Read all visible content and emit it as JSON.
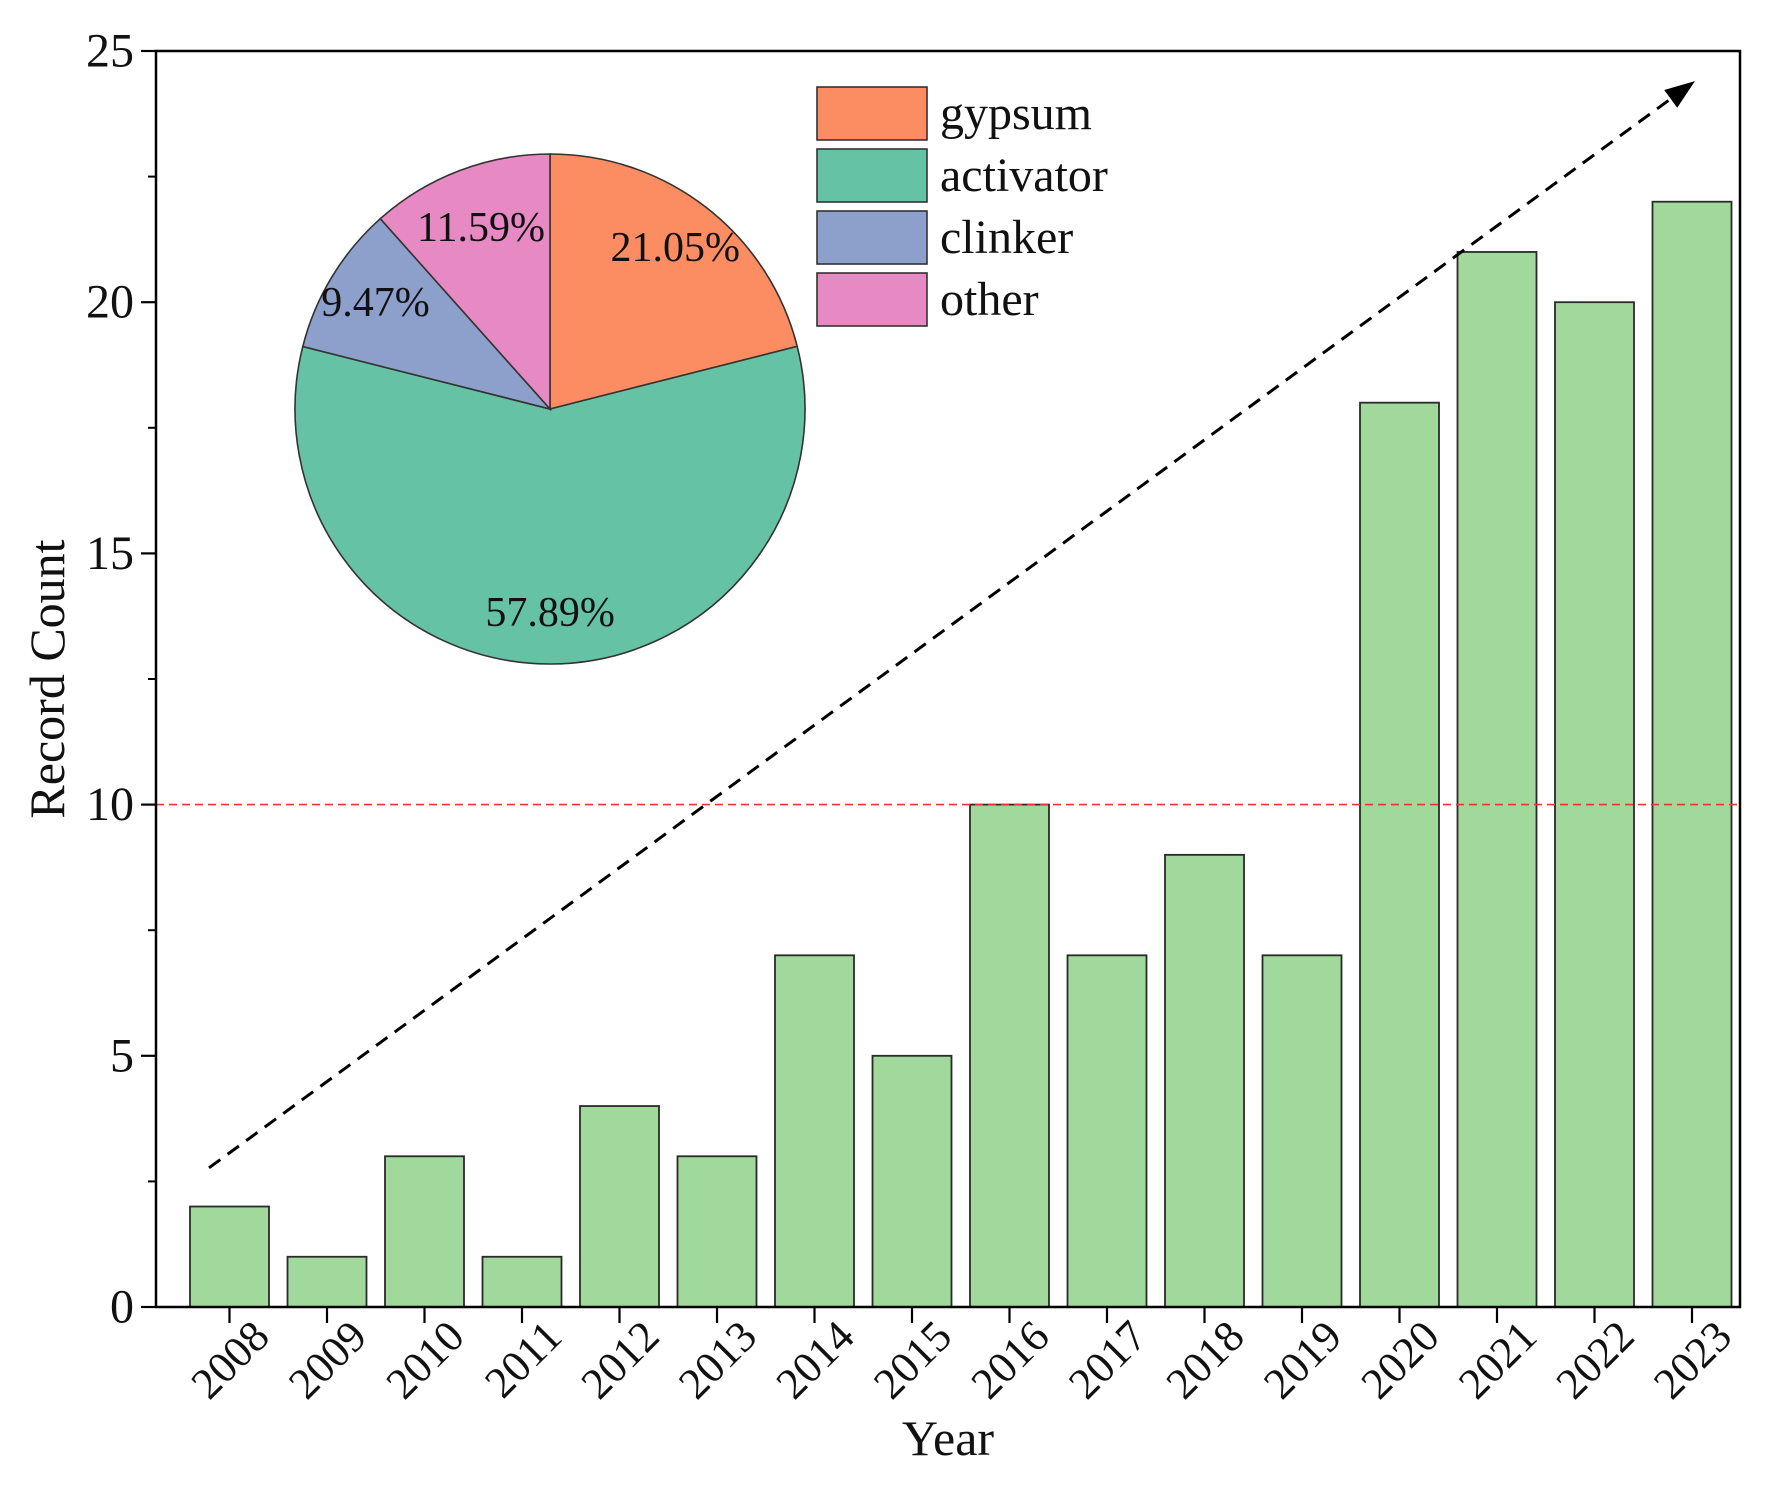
{
  "chart_data": [
    {
      "type": "bar",
      "title": "",
      "xlabel": "Year",
      "ylabel": "Record Count",
      "categories": [
        "2008",
        "2009",
        "2010",
        "2011",
        "2012",
        "2013",
        "2014",
        "2015",
        "2016",
        "2017",
        "2018",
        "2019",
        "2020",
        "2021",
        "2022",
        "2023"
      ],
      "values": [
        2,
        1,
        3,
        1,
        4,
        3,
        7,
        5,
        10,
        7,
        9,
        7,
        18,
        21,
        20,
        22
      ],
      "ylim": [
        0,
        25
      ],
      "yticks": [
        0,
        5,
        10,
        15,
        20,
        25
      ],
      "grid": false,
      "bar_color": "#a0d99b",
      "reference_line": {
        "y": 10,
        "color": "#ee3333",
        "style": "dashed"
      },
      "annotation": "dashed black upward trend arrow"
    },
    {
      "type": "pie",
      "labels": [
        "gypsum",
        "activator",
        "clinker",
        "other"
      ],
      "values": [
        21.05,
        57.89,
        9.47,
        11.59
      ],
      "value_labels": [
        "21.05%",
        "57.89%",
        "9.47%",
        "11.59%"
      ],
      "colors": [
        "#fc8d62",
        "#66c2a5",
        "#8da0cb",
        "#e78ac3"
      ],
      "legend_placement": "top-right of pie"
    }
  ]
}
